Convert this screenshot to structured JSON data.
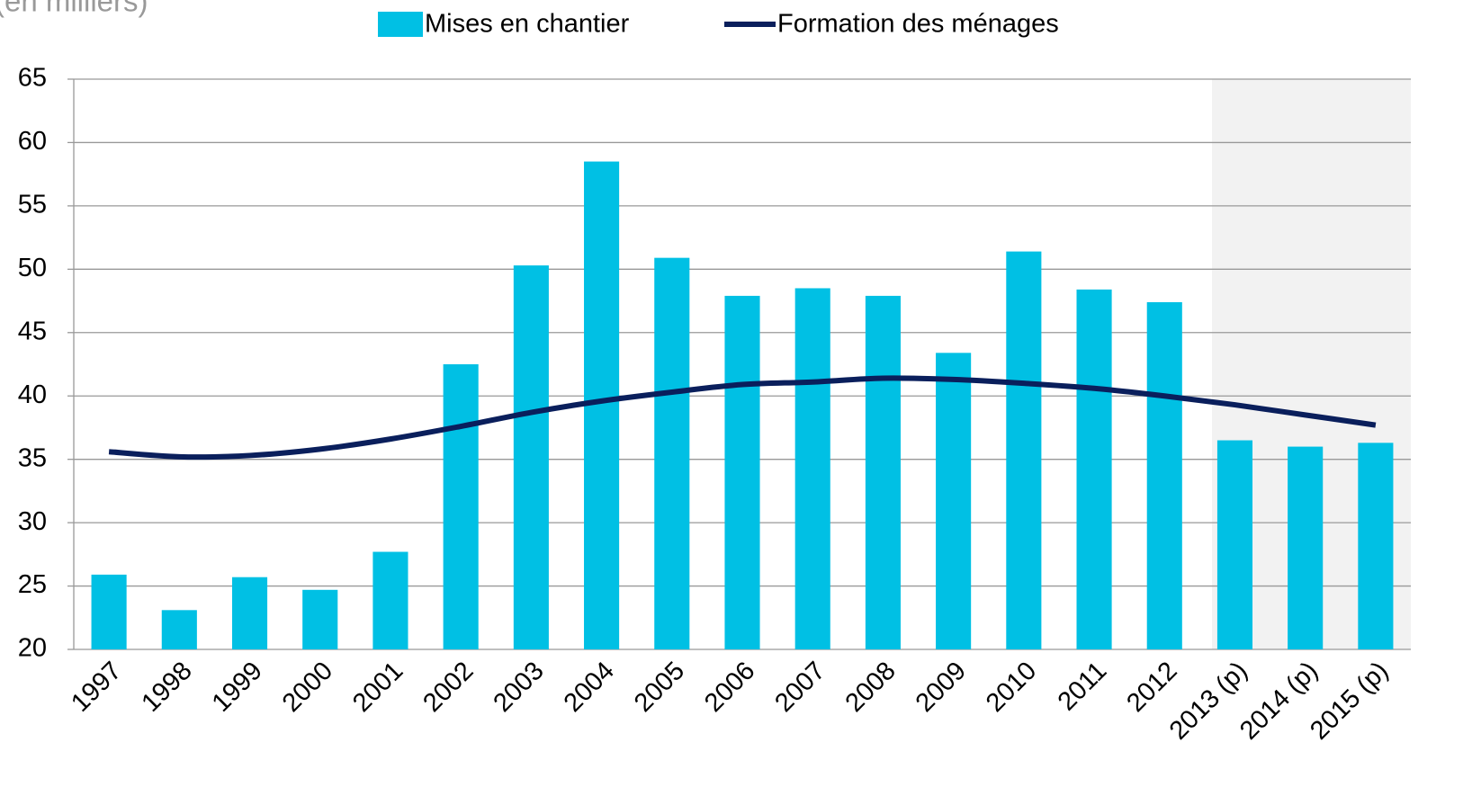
{
  "chart_data": {
    "type": "bar-line",
    "y_label": "(en milliers)",
    "categories": [
      "1997",
      "1998",
      "1999",
      "2000",
      "2001",
      "2002",
      "2003",
      "2004",
      "2005",
      "2006",
      "2007",
      "2008",
      "2009",
      "2010",
      "2011",
      "2012",
      "2013 (p)",
      "2014 (p)",
      "2015 (p)"
    ],
    "series": [
      {
        "name": "Mises en chantier",
        "type": "bar",
        "color": "#00c0e4",
        "values": [
          25.9,
          23.1,
          25.7,
          24.7,
          27.7,
          42.5,
          50.3,
          58.5,
          50.9,
          47.9,
          48.5,
          47.9,
          43.4,
          51.4,
          48.4,
          47.4,
          36.5,
          36.0,
          36.3
        ]
      },
      {
        "name": "Formation des ménages",
        "type": "line",
        "color": "#0a1f5c",
        "values": [
          35.6,
          35.2,
          35.3,
          35.8,
          36.6,
          37.6,
          38.7,
          39.6,
          40.3,
          40.9,
          41.1,
          41.4,
          41.3,
          41.0,
          40.6,
          40.0,
          39.3,
          38.5,
          37.7
        ]
      }
    ],
    "ylim": [
      20,
      65
    ],
    "yticks": [
      20,
      25,
      30,
      35,
      40,
      45,
      50,
      55,
      60,
      65
    ],
    "grid": true,
    "legend": "top"
  }
}
